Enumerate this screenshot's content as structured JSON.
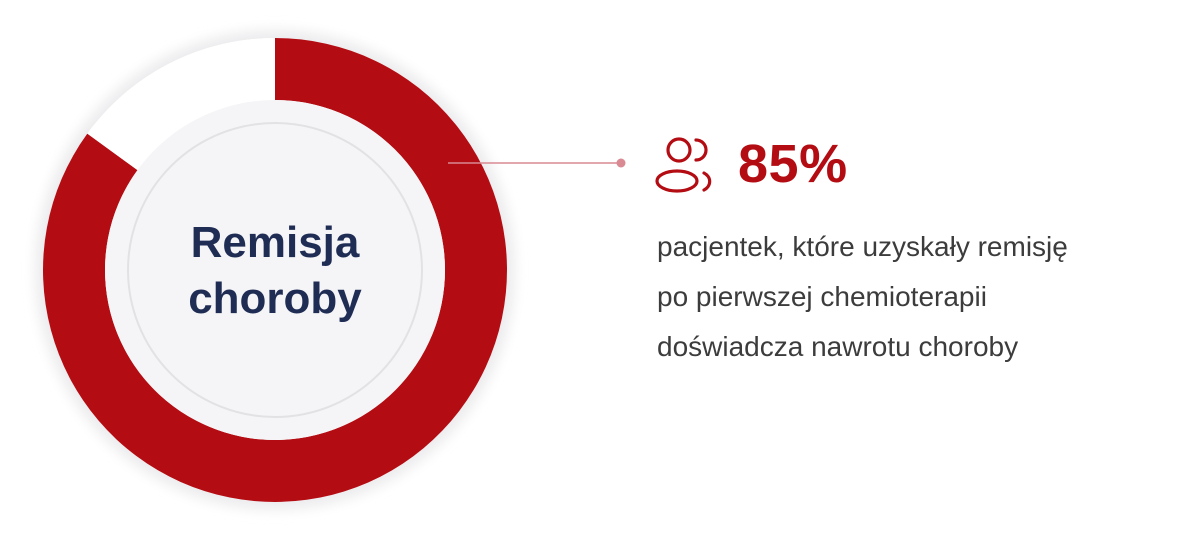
{
  "chart_data": {
    "type": "pie",
    "variant": "donut",
    "center_label": [
      "Remisja",
      "choroby"
    ],
    "slices": [
      {
        "label": "pacjentek, które uzyskały remisję po pierwszej chemioterapii doświadcza nawrotu choroby",
        "value": 85
      },
      {
        "label": "",
        "value": 15
      }
    ],
    "start": "top",
    "direction": "clockwise"
  },
  "callout": {
    "value": "85%",
    "icon": "users-icon",
    "description_lines": [
      "pacjentek, które uzyskały remisję",
      "po pierwszej chemioterapii",
      "doświadcza nawrotu choroby"
    ]
  },
  "colors": {
    "accent": "#b30d13",
    "remainder": "#ffffff",
    "center_fill": "#f5f5f7",
    "center_text": "#1f2d55",
    "body_text": "#3c3c3c",
    "leader_line": "#d98a92"
  }
}
